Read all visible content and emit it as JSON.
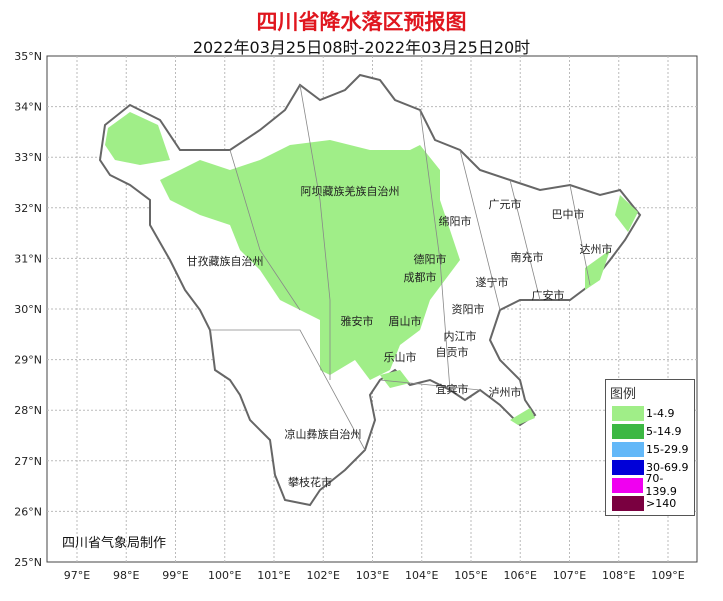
{
  "title": "四川省降水落区预报图",
  "subtitle": "2022年03月25日08时-2022年03月25日20时",
  "lat_labels": [
    "35°N",
    "34°N",
    "33°N",
    "32°N",
    "31°N",
    "30°N",
    "29°N",
    "28°N",
    "27°N",
    "26°N",
    "25°N"
  ],
  "lon_labels": [
    "97°E",
    "98°E",
    "99°E",
    "100°E",
    "101°E",
    "102°E",
    "103°E",
    "104°E",
    "105°E",
    "106°E",
    "107°E",
    "108°E",
    "109°E"
  ],
  "regions": [
    "阿坝藏族羌族自治州",
    "甘孜藏族自治州",
    "凉山彝族自治州",
    "攀枝花市",
    "雅安市",
    "眉山市",
    "乐山市",
    "成都市",
    "德阳市",
    "绵阳市",
    "广元市",
    "巴中市",
    "达州市",
    "南充市",
    "遂宁市",
    "广安市",
    "资阳市",
    "内江市",
    "自贡市",
    "宜宾市",
    "泸州市"
  ],
  "legend": {
    "title": "图例",
    "items": [
      {
        "label": "1-4.9",
        "color": "#a0ee88"
      },
      {
        "label": "5-14.9",
        "color": "#3cb843"
      },
      {
        "label": "15-29.9",
        "color": "#63b8f8"
      },
      {
        "label": "30-69.9",
        "color": "#0000d8"
      },
      {
        "label": "70-139.9",
        "color": "#f000f0"
      },
      {
        "label": ">140",
        "color": "#7a0040"
      }
    ]
  },
  "footer": "四川省气象局制作"
}
